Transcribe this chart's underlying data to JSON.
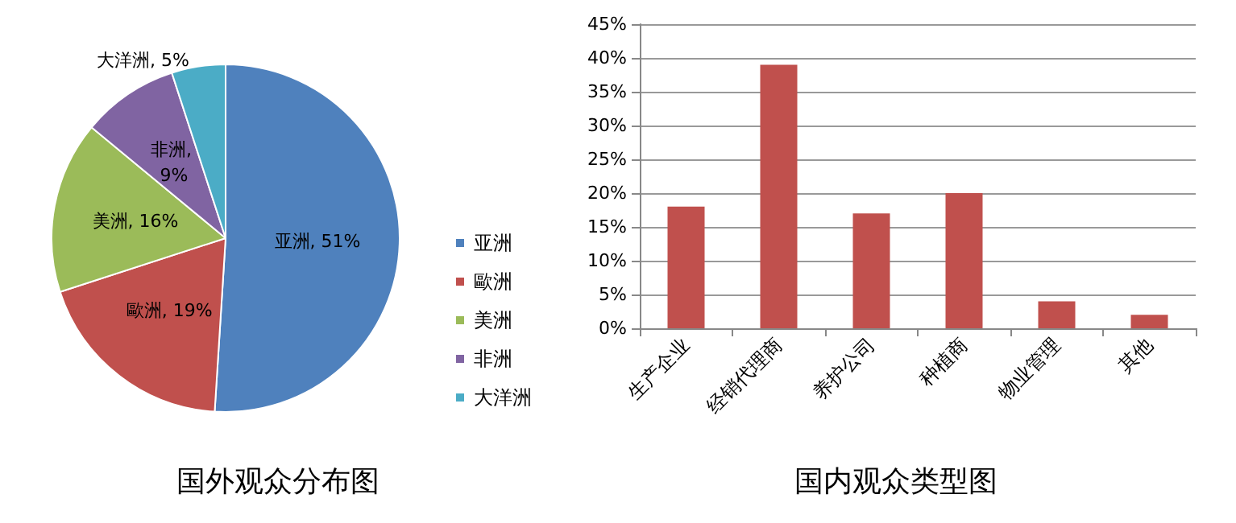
{
  "chart_data": [
    {
      "type": "pie",
      "title": "国外观众分布图",
      "categories": [
        "亚洲",
        "歐洲",
        "美洲",
        "非洲",
        "大洋洲"
      ],
      "values": [
        51,
        19,
        16,
        9,
        5
      ],
      "colors": [
        "#4f81bd",
        "#c0504d",
        "#9bbb59",
        "#8064a2",
        "#4bacc6"
      ],
      "value_labels": [
        "亚洲, 51%",
        "歐洲, 19%",
        "美洲, 16%",
        "非洲, 9%",
        "大洋洲, 5%"
      ],
      "legend": "right"
    },
    {
      "type": "bar",
      "title": "国内观众类型图",
      "categories": [
        "生产企业",
        "经销代理商",
        "养护公司",
        "种植商",
        "物业管理",
        "其他"
      ],
      "values": [
        18,
        39,
        17,
        20,
        4,
        2
      ],
      "color": "#c0504d",
      "ylim": [
        0,
        45
      ],
      "yticks": [
        {
          "value": 0,
          "label": "0%"
        },
        {
          "value": 5,
          "label": "5%"
        },
        {
          "value": 10,
          "label": "10%"
        },
        {
          "value": 15,
          "label": "15%"
        },
        {
          "value": 20,
          "label": "20%"
        },
        {
          "value": 25,
          "label": "25%"
        },
        {
          "value": 30,
          "label": "30%"
        },
        {
          "value": 35,
          "label": "35%"
        },
        {
          "value": 40,
          "label": "40%"
        },
        {
          "value": 45,
          "label": "45%"
        }
      ],
      "grid": "y",
      "legend": false
    }
  ]
}
